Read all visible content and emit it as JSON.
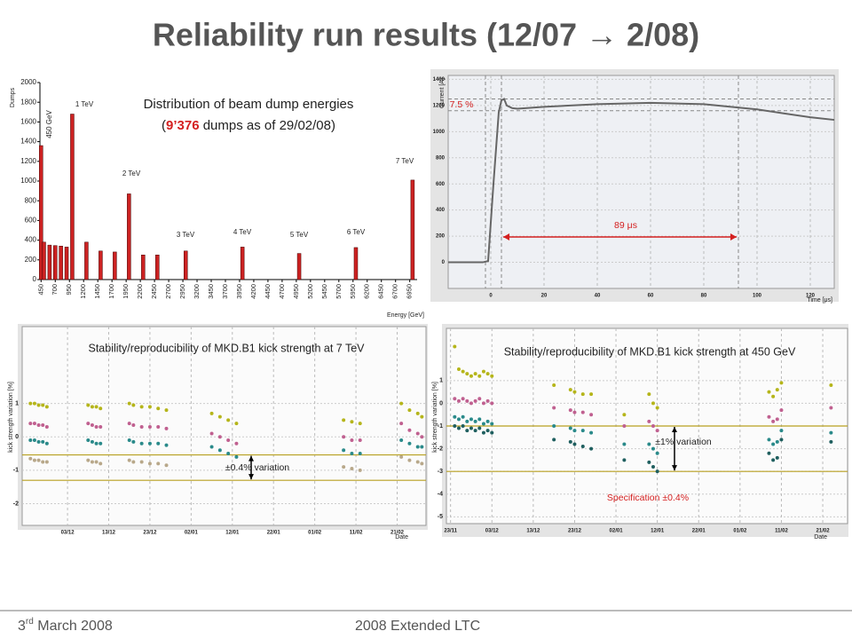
{
  "header": {
    "title": "Reliability run results (12/07 → 2/08)"
  },
  "footer": {
    "date": [
      "3",
      "rd",
      " March 2008"
    ],
    "event": "2008 Extended LTC"
  },
  "chart_data": [
    {
      "type": "bar",
      "title": "Distribution of beam dump energies",
      "subtitle": [
        "(",
        "9’376",
        " dumps as of 29/02/08)"
      ],
      "y_label": "Dumps",
      "x_label": "Energy [GeV]",
      "color": "#cc2222",
      "x": [
        450,
        500,
        600,
        700,
        800,
        900,
        1000,
        1250,
        1500,
        1750,
        2000,
        2250,
        2500,
        3000,
        4000,
        5000,
        6000,
        7000
      ],
      "values": [
        1360,
        380,
        350,
        345,
        340,
        330,
        1680,
        380,
        290,
        280,
        870,
        250,
        250,
        290,
        330,
        265,
        325,
        1010
      ],
      "xlim": [
        430,
        7080
      ],
      "xticks": [
        450,
        700,
        950,
        1200,
        1450,
        1700,
        1950,
        2200,
        2450,
        2700,
        2950,
        3200,
        3450,
        3700,
        3950,
        4200,
        4450,
        4700,
        4950,
        5200,
        5450,
        5700,
        5950,
        6200,
        6450,
        6700,
        6950
      ],
      "ylim": [
        0,
        2000
      ],
      "yticks": [
        0,
        200,
        400,
        600,
        800,
        1000,
        1200,
        1400,
        1600,
        1800,
        2000
      ],
      "annotations": [
        "450 GeV",
        "1 TeV",
        "2 TeV",
        "3 TeV",
        "4 TeV",
        "5 TeV",
        "6 TeV",
        "7 TeV"
      ],
      "grid": false
    },
    {
      "type": "line",
      "y_label": "Current [A]",
      "x_label": "Time [μs]",
      "x": [
        -16,
        -3,
        -1,
        1,
        3,
        4,
        5,
        6,
        8,
        10,
        20,
        40,
        60,
        80,
        100,
        110,
        120,
        129
      ],
      "series": [
        {
          "color": "#666666",
          "values": [
            0,
            0,
            10,
            600,
            1150,
            1240,
            1250,
            1200,
            1180,
            1175,
            1190,
            1210,
            1220,
            1210,
            1170,
            1140,
            1110,
            1090
          ]
        }
      ],
      "xlim": [
        -16,
        129
      ],
      "xticks": [
        0,
        20,
        40,
        60,
        80,
        100,
        120
      ],
      "ylim": [
        -200,
        1430
      ],
      "yticks": [
        0,
        200,
        400,
        600,
        800,
        1000,
        1200,
        1400
      ],
      "hlines": [
        1250,
        1160
      ],
      "vlines": [
        -2,
        4,
        93
      ],
      "annotations": [
        "7.5 %",
        "89 μs"
      ],
      "grid": true
    },
    {
      "type": "scatter",
      "title": "Stability/reproducibility of MKD.B1 kick strength at 7 TeV",
      "y_label": "kick strength variation [%]",
      "x_label": "Date",
      "x": [
        -9,
        -8,
        -7,
        -6,
        -5,
        5,
        6,
        7,
        8,
        15,
        16,
        18,
        20,
        22,
        24,
        35,
        37,
        39,
        41,
        67,
        69,
        71,
        81,
        83,
        85,
        86
      ],
      "series": [
        {
          "color": "#b5b51a",
          "values": [
            1.0,
            1.0,
            0.95,
            0.95,
            0.9,
            0.95,
            0.9,
            0.9,
            0.85,
            1.0,
            0.95,
            0.9,
            0.9,
            0.85,
            0.8,
            0.7,
            0.6,
            0.5,
            0.4,
            0.5,
            0.45,
            0.4,
            1.0,
            0.8,
            0.7,
            0.6
          ]
        },
        {
          "color": "#c06090",
          "values": [
            0.4,
            0.4,
            0.35,
            0.35,
            0.3,
            0.4,
            0.35,
            0.3,
            0.3,
            0.4,
            0.35,
            0.3,
            0.3,
            0.3,
            0.25,
            0.1,
            0.0,
            -0.1,
            -0.2,
            0.0,
            -0.1,
            -0.1,
            0.4,
            0.2,
            0.1,
            0.0
          ]
        },
        {
          "color": "#2a8a8a",
          "values": [
            -0.1,
            -0.1,
            -0.15,
            -0.15,
            -0.2,
            -0.1,
            -0.15,
            -0.2,
            -0.2,
            -0.1,
            -0.15,
            -0.2,
            -0.2,
            -0.2,
            -0.25,
            -0.3,
            -0.4,
            -0.5,
            -0.6,
            -0.4,
            -0.5,
            -0.5,
            -0.1,
            -0.2,
            -0.3,
            -0.3
          ]
        },
        {
          "color": "#b8a88a",
          "values": [
            -0.65,
            -0.7,
            -0.7,
            -0.75,
            -0.75,
            -0.7,
            -0.75,
            -0.75,
            -0.8,
            -0.7,
            -0.75,
            -0.75,
            -0.8,
            -0.8,
            -0.85,
            null,
            null,
            null,
            null,
            -0.9,
            -0.95,
            -1.0,
            -0.6,
            -0.7,
            -0.75,
            -0.8
          ]
        }
      ],
      "xlim": [
        -11,
        87
      ],
      "xticks": [
        {
          "value": 0,
          "label": "03/12"
        },
        {
          "value": 10,
          "label": "13/12"
        },
        {
          "value": 20,
          "label": "23/12"
        },
        {
          "value": 30,
          "label": "02/01"
        },
        {
          "value": 40,
          "label": "12/01"
        },
        {
          "value": 50,
          "label": "22/01"
        },
        {
          "value": 60,
          "label": "01/02"
        },
        {
          "value": 70,
          "label": "11/02"
        },
        {
          "value": 80,
          "label": "21/02"
        }
      ],
      "ylim": [
        -2.65,
        3.3
      ],
      "yticks": [
        -2,
        -1,
        0,
        1
      ],
      "hlines": [
        -0.54,
        -1.3
      ],
      "annotations": [
        "±0.4% variation"
      ],
      "grid": true
    },
    {
      "type": "scatter",
      "title": "Stability/reproducibility of MKD.B1 kick strength at 450 GeV",
      "y_label": "kick strength variation [%]",
      "x_label": "Date",
      "x": [
        -9,
        -8,
        -7,
        -6,
        -5,
        -4,
        -3,
        -2,
        -1,
        0,
        15,
        19,
        20,
        22,
        24,
        32,
        38,
        39,
        40,
        67,
        68,
        69,
        70,
        82
      ],
      "series": [
        {
          "color": "#b5b51a",
          "values": [
            2.5,
            1.5,
            1.4,
            1.3,
            1.2,
            1.3,
            1.2,
            1.4,
            1.3,
            1.2,
            0.8,
            0.6,
            0.5,
            0.4,
            0.4,
            -0.5,
            0.4,
            0.0,
            -0.2,
            0.5,
            0.3,
            0.6,
            0.9,
            0.8
          ]
        },
        {
          "color": "#c06090",
          "values": [
            0.2,
            0.1,
            0.2,
            0.1,
            0.0,
            0.1,
            0.2,
            0.0,
            0.1,
            0.0,
            -0.2,
            -0.3,
            -0.4,
            -0.4,
            -0.5,
            -1.0,
            -0.8,
            -1.0,
            -1.2,
            -0.6,
            -0.8,
            -0.7,
            -0.3,
            -0.2
          ]
        },
        {
          "color": "#2a8a8a",
          "values": [
            -0.6,
            -0.7,
            -0.6,
            -0.8,
            -0.7,
            -0.8,
            -0.7,
            -0.9,
            -0.8,
            -0.9,
            -1.0,
            -1.1,
            -1.2,
            -1.2,
            -1.3,
            -1.8,
            -1.8,
            -2.0,
            -2.2,
            -1.6,
            -1.8,
            -1.7,
            -1.2,
            -1.3
          ]
        },
        {
          "color": "#1f5f5f",
          "values": [
            -1.0,
            -1.1,
            -1.0,
            -1.2,
            -1.1,
            -1.2,
            -1.1,
            -1.3,
            -1.2,
            -1.3,
            -1.6,
            -1.7,
            -1.8,
            -1.9,
            -2.0,
            -2.5,
            -2.6,
            -2.8,
            -3.0,
            -2.2,
            -2.5,
            -2.4,
            -1.6,
            -1.7
          ]
        }
      ],
      "xlim": [
        -11,
        86
      ],
      "xticks": [
        {
          "value": -10,
          "label": "23/11"
        },
        {
          "value": 0,
          "label": "03/12"
        },
        {
          "value": 10,
          "label": "13/12"
        },
        {
          "value": 20,
          "label": "23/12"
        },
        {
          "value": 30,
          "label": "02/01"
        },
        {
          "value": 40,
          "label": "12/01"
        },
        {
          "value": 50,
          "label": "22/01"
        },
        {
          "value": 60,
          "label": "01/02"
        },
        {
          "value": 70,
          "label": "11/02"
        },
        {
          "value": 80,
          "label": "21/02"
        }
      ],
      "ylim": [
        -5.3,
        3.3
      ],
      "yticks": [
        -5,
        -4,
        -3,
        -2,
        -1,
        0,
        1
      ],
      "hlines": [
        -1,
        -3
      ],
      "annotations": [
        "±1% variation",
        "Specification ±0.4%"
      ],
      "grid": true
    }
  ]
}
